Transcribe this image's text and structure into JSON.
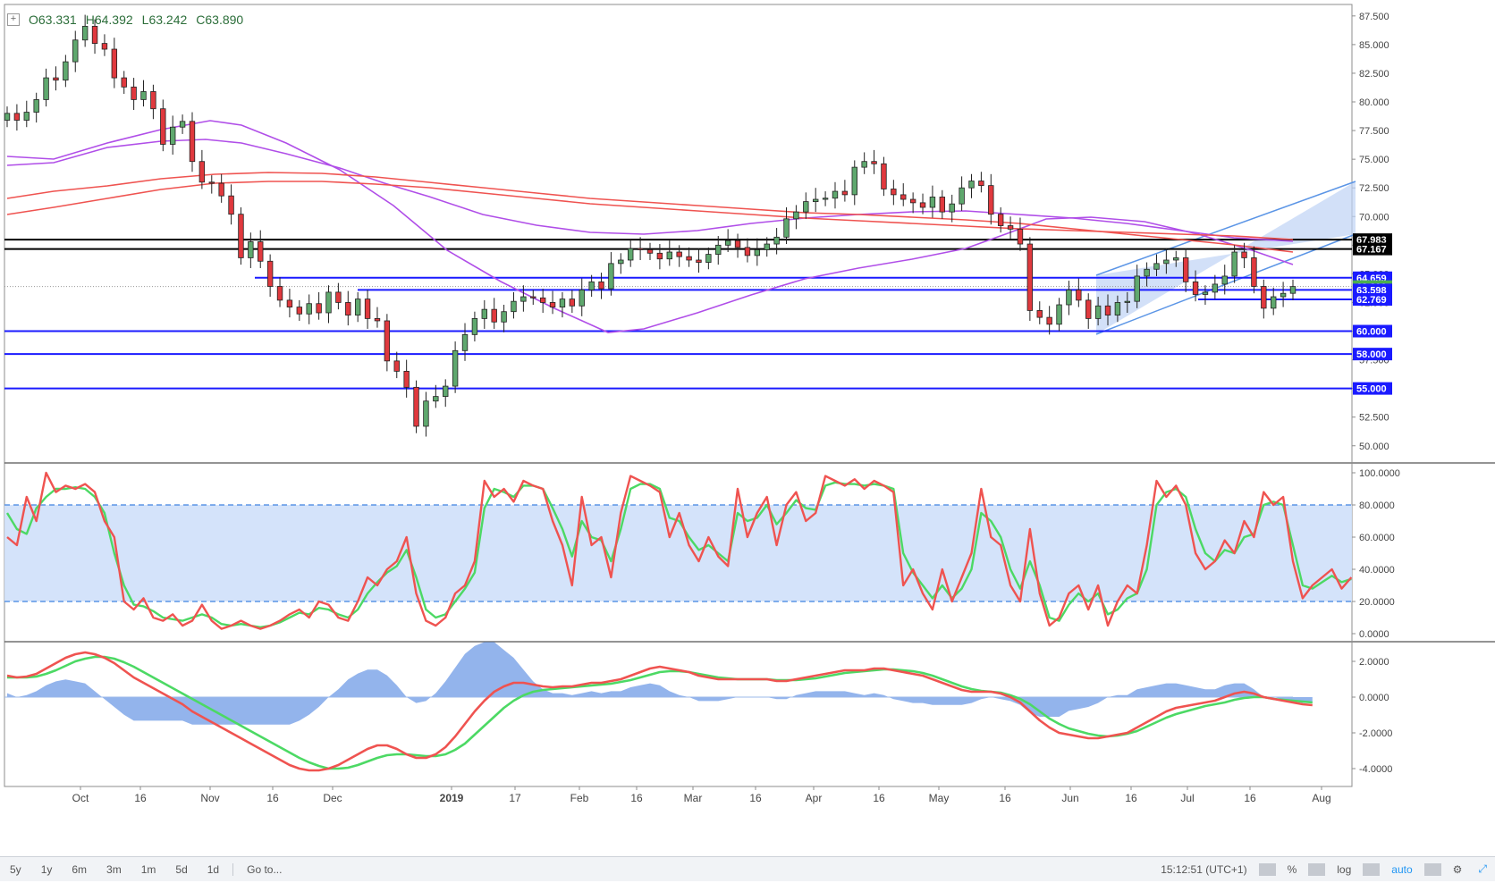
{
  "ohlc": {
    "open": "O63.331",
    "high": "H64.392",
    "low": "L63.242",
    "close": "C63.890"
  },
  "bottom_bar": {
    "timeframes": [
      "5y",
      "1y",
      "6m",
      "3m",
      "1m",
      "5d",
      "1d"
    ],
    "goto_label": "Go to...",
    "clock": "15:12:51 (UTC+1)",
    "percent_label": "%",
    "log_label": "log",
    "auto_label": "auto"
  },
  "x_axis": {
    "ticks": [
      "Oct",
      "16",
      "Nov",
      "16",
      "Dec",
      "2019",
      "17",
      "Feb",
      "16",
      "Mar",
      "16",
      "Apr",
      "16",
      "May",
      "16",
      "Jun",
      "16",
      "Jul",
      "16",
      "Aug"
    ],
    "bold_tick": "2019"
  },
  "colors": {
    "bull": "#5fa86e",
    "bear": "#e0393e",
    "ma_purple": "#b04ee8",
    "ma_red": "#ef5350",
    "level_blue": "#1a1aff",
    "level_black": "#000000",
    "channel_fill": "#bfd3f5",
    "channel_line": "#5b95e6",
    "stoch_k": "#ef5350",
    "stoch_d": "#4cd964",
    "macd_fill": "#6f9be6",
    "band_fill": "#cfe0fa"
  },
  "chart_data": [
    {
      "type": "candlestick",
      "panel": "price",
      "ylim": [
        48.5,
        88.5
      ],
      "y_ticks": [
        "87.500",
        "85.000",
        "82.500",
        "80.000",
        "77.500",
        "75.000",
        "72.500",
        "70.000",
        "67.500",
        "65.000",
        "62.500",
        "60.000",
        "57.500",
        "55.000",
        "52.500",
        "50.000"
      ],
      "ohlc_last": {
        "open": 63.331,
        "high": 64.392,
        "low": 63.242,
        "close": 63.89
      },
      "closes": [
        79.0,
        78.4,
        79.1,
        80.2,
        82.1,
        81.9,
        83.5,
        85.4,
        86.6,
        85.1,
        84.6,
        82.1,
        81.3,
        80.2,
        80.9,
        79.4,
        76.3,
        77.8,
        78.3,
        74.8,
        73.0,
        72.9,
        71.8,
        70.2,
        66.4,
        67.8,
        66.1,
        63.9,
        62.7,
        62.1,
        61.5,
        62.4,
        61.6,
        63.4,
        62.5,
        61.4,
        62.8,
        61.1,
        60.9,
        57.4,
        56.5,
        55.1,
        51.7,
        53.9,
        54.3,
        55.2,
        58.3,
        59.7,
        61.1,
        61.9,
        60.8,
        61.7,
        62.6,
        63.0,
        62.9,
        62.5,
        62.1,
        62.8,
        62.2,
        63.6,
        64.3,
        63.7,
        65.9,
        66.2,
        67.2,
        67.1,
        66.8,
        66.3,
        66.9,
        66.5,
        66.2,
        66.0,
        66.7,
        67.5,
        67.9,
        67.3,
        66.6,
        67.1,
        67.6,
        68.2,
        69.8,
        70.4,
        71.3,
        71.5,
        71.6,
        72.2,
        71.9,
        74.3,
        74.8,
        74.6,
        72.4,
        71.9,
        71.5,
        71.2,
        70.8,
        71.7,
        70.4,
        71.1,
        72.5,
        73.1,
        72.7,
        70.2,
        69.2,
        68.9,
        67.6,
        61.8,
        61.2,
        60.6,
        62.3,
        63.6,
        62.7,
        61.1,
        62.2,
        61.4,
        62.5,
        62.6,
        64.8,
        65.4,
        65.9,
        66.2,
        66.4,
        64.3,
        63.2,
        63.4,
        64.1,
        64.8,
        66.9,
        66.4,
        63.9,
        62.0,
        63.0,
        63.3,
        63.89
      ],
      "levels": [
        {
          "value": 67.983,
          "label": "67.983",
          "color": "#000000"
        },
        {
          "value": 67.167,
          "label": "67.167",
          "color": "#000000"
        },
        {
          "value": 64.659,
          "label": "64.659",
          "color": "#1a1aff"
        },
        {
          "value": 63.89,
          "label": "63.890",
          "color": "#4caf50"
        },
        {
          "value": 63.598,
          "label": "63.598",
          "color": "#1a1aff"
        },
        {
          "value": 62.769,
          "label": "62.769",
          "color": "#1a1aff"
        },
        {
          "value": 60.0,
          "label": "60.000",
          "color": "#1a1aff"
        },
        {
          "value": 58.0,
          "label": "58.000",
          "color": "#1a1aff"
        },
        {
          "value": 55.0,
          "label": "55.000",
          "color": "#1a1aff"
        }
      ]
    },
    {
      "type": "line",
      "panel": "stochastic",
      "ylim": [
        -5,
        105
      ],
      "y_ticks": [
        "100.0000",
        "80.0000",
        "60.0000",
        "40.0000",
        "20.0000",
        "0.0000"
      ],
      "band": [
        20,
        80
      ],
      "series": [
        {
          "key": "k",
          "values": [
            60,
            55,
            85,
            70,
            100,
            88,
            92,
            90,
            93,
            88,
            70,
            60,
            20,
            15,
            22,
            10,
            8,
            12,
            5,
            8,
            18,
            8,
            3,
            5,
            8,
            5,
            3,
            5,
            8,
            12,
            15,
            10,
            20,
            18,
            10,
            8,
            20,
            35,
            30,
            40,
            45,
            60,
            25,
            8,
            5,
            10,
            25,
            30,
            45,
            95,
            85,
            90,
            82,
            95,
            92,
            90,
            70,
            55,
            30,
            85,
            55,
            60,
            35,
            75,
            98,
            95,
            92,
            88,
            60,
            75,
            55,
            45,
            60,
            48,
            42,
            90,
            60,
            75,
            85,
            55,
            80,
            88,
            70,
            75,
            98,
            95,
            92,
            96,
            90,
            95,
            92,
            88,
            30,
            40,
            25,
            15,
            40,
            20,
            35,
            50,
            90,
            60,
            55,
            30,
            20,
            65,
            25,
            5,
            10,
            25,
            30,
            15,
            30,
            5,
            20,
            30,
            25,
            55,
            95,
            85,
            92,
            80,
            50,
            40,
            45,
            58,
            50,
            70,
            60,
            88,
            80,
            85,
            45,
            22,
            30,
            35,
            40,
            28,
            35
          ]
        },
        {
          "key": "d",
          "values": [
            75,
            65,
            62,
            78,
            85,
            90,
            90,
            91,
            90,
            85,
            75,
            50,
            30,
            18,
            17,
            14,
            10,
            9,
            8,
            10,
            12,
            10,
            6,
            5,
            6,
            5,
            4,
            5,
            7,
            10,
            13,
            12,
            16,
            15,
            12,
            10,
            15,
            25,
            32,
            38,
            42,
            52,
            35,
            15,
            10,
            12,
            20,
            28,
            38,
            78,
            90,
            88,
            85,
            92,
            92,
            90,
            78,
            65,
            48,
            70,
            60,
            58,
            45,
            65,
            90,
            93,
            93,
            90,
            72,
            70,
            60,
            52,
            55,
            50,
            45,
            75,
            70,
            72,
            80,
            68,
            75,
            83,
            78,
            77,
            92,
            94,
            93,
            93,
            92,
            93,
            92,
            90,
            50,
            38,
            30,
            22,
            30,
            22,
            28,
            40,
            75,
            70,
            60,
            40,
            28,
            45,
            30,
            10,
            8,
            18,
            25,
            20,
            25,
            12,
            15,
            22,
            25,
            40,
            80,
            88,
            90,
            85,
            65,
            50,
            45,
            52,
            50,
            60,
            62,
            80,
            82,
            80,
            55,
            30,
            28,
            32,
            36,
            32,
            34
          ]
        }
      ]
    },
    {
      "type": "line",
      "panel": "macd",
      "ylim": [
        -5,
        3
      ],
      "y_ticks": [
        "2.0000",
        "0.0000",
        "-2.0000",
        "-4.0000"
      ],
      "series": [
        {
          "key": "macd",
          "values": [
            1.2,
            1.1,
            1.15,
            1.3,
            1.6,
            1.9,
            2.2,
            2.4,
            2.5,
            2.4,
            2.2,
            1.9,
            1.5,
            1.1,
            0.8,
            0.5,
            0.2,
            -0.1,
            -0.4,
            -0.8,
            -1.1,
            -1.4,
            -1.7,
            -2.0,
            -2.3,
            -2.6,
            -2.9,
            -3.2,
            -3.5,
            -3.8,
            -4.0,
            -4.1,
            -4.1,
            -4.0,
            -3.8,
            -3.5,
            -3.2,
            -2.9,
            -2.7,
            -2.7,
            -2.9,
            -3.2,
            -3.4,
            -3.4,
            -3.2,
            -2.8,
            -2.2,
            -1.5,
            -0.8,
            -0.2,
            0.3,
            0.6,
            0.8,
            0.8,
            0.7,
            0.6,
            0.55,
            0.6,
            0.6,
            0.7,
            0.8,
            0.8,
            0.9,
            1.0,
            1.2,
            1.4,
            1.6,
            1.7,
            1.6,
            1.5,
            1.4,
            1.2,
            1.1,
            1.0,
            1.0,
            1.0,
            1.0,
            1.0,
            1.0,
            0.9,
            0.9,
            1.0,
            1.1,
            1.2,
            1.3,
            1.4,
            1.5,
            1.5,
            1.5,
            1.6,
            1.6,
            1.5,
            1.4,
            1.3,
            1.2,
            1.0,
            0.8,
            0.6,
            0.4,
            0.3,
            0.3,
            0.3,
            0.2,
            0.0,
            -0.3,
            -0.8,
            -1.3,
            -1.7,
            -2.0,
            -2.1,
            -2.2,
            -2.3,
            -2.3,
            -2.2,
            -2.1,
            -2.0,
            -1.7,
            -1.4,
            -1.1,
            -0.8,
            -0.6,
            -0.5,
            -0.4,
            -0.3,
            -0.2,
            0.0,
            0.2,
            0.3,
            0.2,
            0.0,
            -0.1,
            -0.2,
            -0.3,
            -0.4,
            -0.45
          ]
        },
        {
          "key": "signal",
          "values": [
            1.1,
            1.1,
            1.1,
            1.15,
            1.3,
            1.5,
            1.75,
            2.0,
            2.15,
            2.25,
            2.25,
            2.15,
            1.95,
            1.7,
            1.4,
            1.1,
            0.8,
            0.5,
            0.2,
            -0.1,
            -0.4,
            -0.7,
            -1.0,
            -1.3,
            -1.6,
            -1.9,
            -2.2,
            -2.5,
            -2.8,
            -3.1,
            -3.4,
            -3.65,
            -3.85,
            -4.0,
            -4.0,
            -3.95,
            -3.8,
            -3.6,
            -3.4,
            -3.25,
            -3.2,
            -3.2,
            -3.25,
            -3.3,
            -3.3,
            -3.2,
            -2.95,
            -2.6,
            -2.1,
            -1.6,
            -1.1,
            -0.6,
            -0.2,
            0.1,
            0.3,
            0.4,
            0.45,
            0.5,
            0.55,
            0.6,
            0.65,
            0.7,
            0.75,
            0.85,
            0.95,
            1.1,
            1.25,
            1.4,
            1.45,
            1.45,
            1.4,
            1.3,
            1.2,
            1.1,
            1.05,
            1.0,
            1.0,
            1.0,
            1.0,
            0.95,
            0.95,
            0.95,
            1.0,
            1.05,
            1.15,
            1.25,
            1.35,
            1.4,
            1.45,
            1.5,
            1.55,
            1.55,
            1.5,
            1.45,
            1.35,
            1.2,
            1.0,
            0.8,
            0.6,
            0.45,
            0.35,
            0.3,
            0.25,
            0.1,
            -0.1,
            -0.4,
            -0.8,
            -1.2,
            -1.5,
            -1.75,
            -1.9,
            -2.05,
            -2.15,
            -2.2,
            -2.15,
            -2.05,
            -1.9,
            -1.65,
            -1.4,
            -1.15,
            -0.95,
            -0.8,
            -0.65,
            -0.5,
            -0.4,
            -0.3,
            -0.15,
            -0.05,
            0.0,
            0.0,
            -0.1,
            -0.15,
            -0.2,
            -0.25,
            -0.3
          ]
        }
      ]
    }
  ]
}
